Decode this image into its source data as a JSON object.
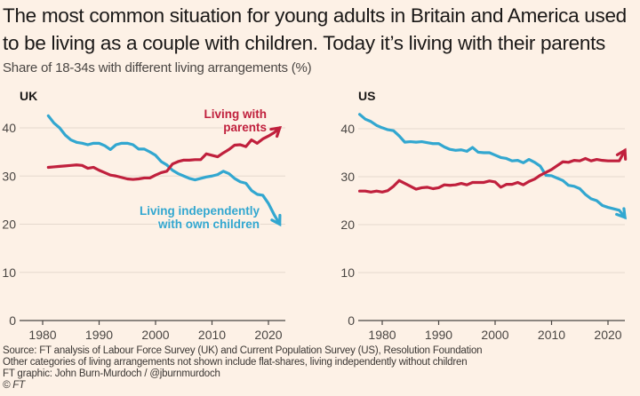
{
  "title": "The most common situation for young adults in Britain and America used to be living as a couple with children. Today it’s living with their parents",
  "subtitle": "Share of 18-34s with different living arrangements (%)",
  "footer": {
    "source": "Source: FT analysis of Labour Force Survey (UK) and Current Population Survey (US), Resolution Foundation",
    "note": "Other categories of living arrangements not shown include flat-shares, living independently without children",
    "credit": "FT graphic: John Burn-Murdoch / @jburnmurdoch",
    "copyright": "© FT"
  },
  "colors": {
    "parents": "#c0203d",
    "independent": "#32a7d0"
  },
  "chart_data": [
    {
      "type": "line",
      "title": "UK",
      "xlabel": "",
      "ylabel": "",
      "xlim": [
        1977,
        2023
      ],
      "ylim": [
        0,
        40
      ],
      "xticks": [
        1980,
        1990,
        2000,
        2010,
        2020
      ],
      "yticks": [
        0,
        10,
        20,
        30,
        40
      ],
      "grid": true,
      "annotations": [
        {
          "series": "Living with parents",
          "lines": [
            "Living with",
            "parents"
          ]
        },
        {
          "series": "Living independently with own children",
          "lines": [
            "Living independently",
            "with own children"
          ]
        }
      ],
      "x": [
        1981,
        1982,
        1983,
        1984,
        1985,
        1986,
        1987,
        1988,
        1989,
        1990,
        1991,
        1992,
        1993,
        1994,
        1995,
        1996,
        1997,
        1998,
        1999,
        2000,
        2001,
        2002,
        2003,
        2004,
        2005,
        2006,
        2007,
        2008,
        2009,
        2010,
        2011,
        2012,
        2013,
        2014,
        2015,
        2016,
        2017,
        2018,
        2019,
        2020,
        2021,
        2022
      ],
      "series": [
        {
          "name": "Living independently with own children",
          "color_key": "independent",
          "values": [
            42.5,
            41,
            40,
            38.5,
            37.5,
            37,
            36.8,
            36.5,
            36.8,
            36.8,
            36.3,
            35.5,
            36.5,
            36.8,
            36.8,
            36.5,
            35.6,
            35.6,
            35,
            34.3,
            33,
            32.3,
            31.2,
            30.5,
            30,
            29.5,
            29.2,
            29.5,
            29.8,
            30,
            30.3,
            31,
            30.5,
            29.5,
            28.8,
            28.5,
            27,
            26.2,
            26,
            24.3,
            22,
            20
          ]
        },
        {
          "name": "Living with parents",
          "color_key": "parents",
          "values": [
            31.8,
            31.9,
            32,
            32.1,
            32.2,
            32.3,
            32.2,
            31.6,
            31.8,
            31.2,
            30.7,
            30.2,
            30,
            29.7,
            29.4,
            29.3,
            29.4,
            29.6,
            29.6,
            30.2,
            30.7,
            31,
            32.5,
            33,
            33.3,
            33.3,
            33.4,
            33.4,
            34.6,
            34.3,
            34,
            34.8,
            35.5,
            36.4,
            36.5,
            36.1,
            37.5,
            36.8,
            37.7,
            38.3,
            39,
            40
          ]
        }
      ]
    },
    {
      "type": "line",
      "title": "US",
      "xlabel": "",
      "ylabel": "",
      "xlim": [
        1976,
        2023
      ],
      "ylim": [
        0,
        40
      ],
      "xticks": [
        1980,
        1990,
        2000,
        2010,
        2020
      ],
      "yticks": [
        0,
        10,
        20,
        30,
        40
      ],
      "grid": true,
      "x": [
        1976,
        1977,
        1978,
        1979,
        1980,
        1981,
        1982,
        1983,
        1984,
        1985,
        1986,
        1987,
        1988,
        1989,
        1990,
        1991,
        1992,
        1993,
        1994,
        1995,
        1996,
        1997,
        1998,
        1999,
        2000,
        2001,
        2002,
        2003,
        2004,
        2005,
        2006,
        2007,
        2008,
        2009,
        2010,
        2011,
        2012,
        2013,
        2014,
        2015,
        2016,
        2017,
        2018,
        2019,
        2020,
        2021,
        2022,
        2023
      ],
      "series": [
        {
          "name": "Living independently with own children",
          "color_key": "independent",
          "values": [
            43,
            42,
            41.5,
            40.7,
            40.2,
            39.8,
            39.6,
            38.5,
            37.2,
            37.3,
            37.2,
            37.3,
            37.1,
            36.9,
            36.9,
            36.2,
            35.7,
            35.5,
            35.6,
            35.3,
            36.1,
            35.1,
            35,
            35,
            34.5,
            34,
            33.8,
            33.3,
            33.4,
            32.9,
            33.6,
            33,
            32.2,
            30.3,
            30.2,
            29.7,
            29.2,
            28.2,
            28,
            27.5,
            26.3,
            25.4,
            25,
            24,
            23.6,
            23.3,
            23,
            21.5
          ]
        },
        {
          "name": "Living with parents",
          "color_key": "parents",
          "values": [
            27,
            27,
            26.8,
            27,
            26.8,
            27.1,
            28,
            29.2,
            28.6,
            28,
            27.4,
            27.7,
            27.8,
            27.5,
            27.7,
            28.3,
            28.2,
            28.3,
            28.6,
            28.3,
            28.8,
            28.8,
            28.8,
            29.1,
            28.9,
            27.8,
            28.4,
            28.4,
            28.8,
            28.3,
            29,
            29.5,
            30.3,
            30.9,
            31.5,
            32.3,
            33.1,
            33,
            33.4,
            33.3,
            33.8,
            33.3,
            33.6,
            33.4,
            33.3,
            33.3,
            33.3,
            35.5
          ]
        }
      ]
    }
  ]
}
